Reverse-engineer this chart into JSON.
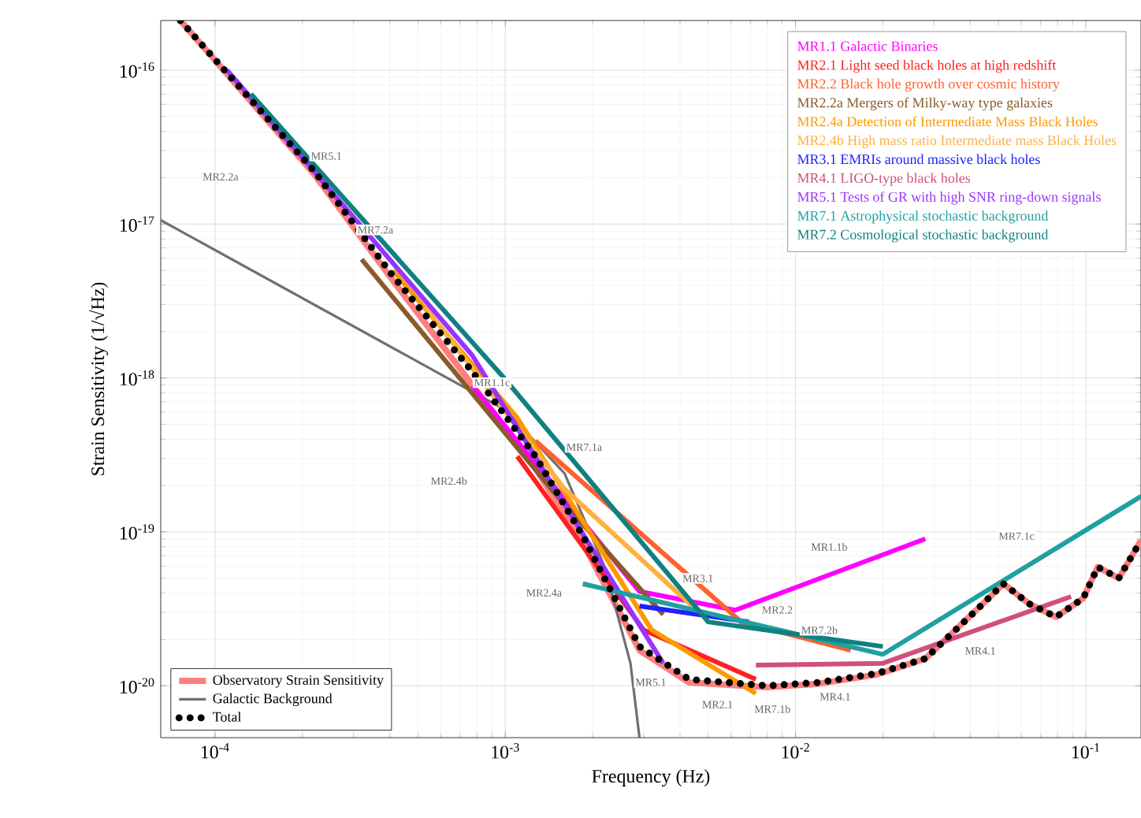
{
  "chart_data": {
    "type": "line",
    "xlabel": "Frequency (Hz)",
    "ylabel": "Strain Sensitivity (1/√Hz)",
    "log": "xy",
    "grid": true,
    "legend": "bottom left",
    "line_style": "solid",
    "xlim": [
      6.5e-05,
      0.155
    ],
    "ylim": [
      4.6e-21,
      2.1e-16
    ],
    "xticks": [
      {
        "value": 0.0001,
        "label": "10$^{-4}$"
      },
      {
        "value": 0.001,
        "label": "10$^{-3}$"
      },
      {
        "value": 0.01,
        "label": "10$^{-2}$"
      },
      {
        "value": 0.1,
        "label": "10$^{-1}$"
      }
    ],
    "yticks": [
      {
        "value": 1e-20,
        "label": "10$^{-20}$"
      },
      {
        "value": 1e-19,
        "label": "10$^{-19}$"
      },
      {
        "value": 1e-18,
        "label": "10$^{-18}$"
      },
      {
        "value": 1e-17,
        "label": "10$^{-17}$"
      },
      {
        "value": 1e-16,
        "label": "10$^{-16}$"
      }
    ],
    "series": [
      {
        "name": "Observatory Strain Sensitivity",
        "color": "#ff7f7f",
        "x": [
          7.6e-05,
          0.00022,
          0.00041,
          0.00077,
          0.00127,
          0.00185,
          0.0029,
          0.0043,
          0.008,
          0.012,
          0.019,
          0.028,
          0.042,
          0.052,
          0.064,
          0.079,
          0.098,
          0.11,
          0.13,
          0.155
        ],
        "values": [
          2.1e-16,
          2.1e-17,
          4.3e-18,
          9e-19,
          2.6e-19,
          8.5e-20,
          1.7e-20,
          1.05e-20,
          9.8e-21,
          1.03e-20,
          1.18e-20,
          1.5e-20,
          3.1e-20,
          4.6e-20,
          3.4e-20,
          2.8e-20,
          3.7e-20,
          5.9e-20,
          5e-20,
          8.8e-20
        ]
      },
      {
        "name": "Galactic Background",
        "color": "#707070",
        "x": [
          6.5e-05,
          0.001,
          0.0016,
          0.0022,
          0.0027,
          0.0029
        ],
        "values": [
          1.06e-17,
          6.2e-19,
          2.4e-19,
          5.9e-20,
          1.4e-20,
          4.6e-21
        ]
      },
      {
        "name": "Total",
        "color": "#000000",
        "line_style": "dotted",
        "x": [
          7.6e-05,
          0.00022,
          0.00041,
          0.00077,
          0.00127,
          0.00185,
          0.0029,
          0.0043,
          0.008,
          0.012,
          0.019,
          0.028,
          0.042,
          0.052,
          0.064,
          0.079,
          0.098,
          0.11,
          0.13,
          0.155
        ],
        "values": [
          2.1e-16,
          2.2e-17,
          4.6e-18,
          1.1e-18,
          3.1e-19,
          9.4e-20,
          1.8e-20,
          1.1e-20,
          1e-20,
          1.05e-20,
          1.2e-20,
          1.5e-20,
          3.1e-20,
          4.6e-20,
          3.4e-20,
          2.8e-20,
          3.7e-20,
          5.9e-20,
          5e-20,
          8.8e-20
        ]
      },
      {
        "name": "MR1.1 Galactic Binaries",
        "color": "#ff00ff",
        "x": [
          0.00077,
          0.0029,
          0.0062,
          0.028
        ],
        "values": [
          8.9e-19,
          4.1e-20,
          3.1e-20,
          9e-20
        ]
      },
      {
        "name": "MR2.1 Light seed black holes at high redshift",
        "color": "#ff2020",
        "x": [
          0.0011,
          0.003,
          0.0073
        ],
        "values": [
          3.1e-19,
          2.3e-20,
          1.1e-20
        ]
      },
      {
        "name": "MR2.2 Black hole growth over cosmic history",
        "color": "#ff6030",
        "x": [
          0.00127,
          0.0065,
          0.0155
        ],
        "values": [
          3.9e-19,
          2.6e-20,
          1.7e-20
        ]
      },
      {
        "name": "MR2.2a Mergers of Milky-way type galaxies",
        "color": "#8b5a2b",
        "x": [
          0.00032,
          0.00144,
          0.0035
        ],
        "values": [
          5.9e-18,
          1.9e-19,
          2.9e-20
        ]
      },
      {
        "name": "MR2.4a Detection of Intermediate Mass Black Holes",
        "color": "#ff9900",
        "x": [
          0.00041,
          0.0011,
          0.0032,
          0.0073
        ],
        "values": [
          5e-18,
          5.5e-19,
          2.3e-20,
          8.9e-21
        ]
      },
      {
        "name": "MR2.4b High mass ratio Intermediate mass Black Holes",
        "color": "#ffb040",
        "x": [
          0.00053,
          0.0016,
          0.0044
        ],
        "values": [
          2.9e-18,
          1.9e-19,
          3.3e-20
        ]
      },
      {
        "name": "MR3.1 EMRIs around massive black holes",
        "color": "#2020ff",
        "x": [
          0.0029,
          0.0069
        ],
        "values": [
          3.3e-20,
          2.6e-20
        ]
      },
      {
        "name": "MR4.1 LIGO-type black holes",
        "color": "#d0507a",
        "x": [
          0.0073,
          0.02,
          0.089
        ],
        "values": [
          1.36e-20,
          1.4e-20,
          3.8e-20
        ]
      },
      {
        "name": "MR5.1 Tests of GR with high SNR ring-down signals",
        "color": "#9933ff",
        "x": [
          0.00011,
          0.00077,
          0.0035
        ],
        "values": [
          1e-16,
          1.4e-18,
          1.4e-20
        ]
      },
      {
        "name": "MR7.1 Astrophysical stochastic background",
        "color": "#20a0a0",
        "x": [
          0.00185,
          0.02,
          0.155
        ],
        "values": [
          4.6e-20,
          1.6e-20,
          1.7e-19
        ]
      },
      {
        "name": "MR7.2 Cosmological stochastic background",
        "color": "#108080",
        "x": [
          0.000133,
          0.00099,
          0.005,
          0.02
        ],
        "values": [
          7e-17,
          1e-18,
          2.6e-20,
          1.8e-20
        ]
      }
    ],
    "annotations": [
      "MR5.1",
      "MR2.2a",
      "MR7.2a",
      "MR1.1c",
      "MR7.1a",
      "MR2.4b",
      "MR2.4a",
      "MR3.1",
      "MR1.1b",
      "MR2.2",
      "MR7.2b",
      "MR7.1c",
      "MR4.1",
      "MR5.1",
      "MR2.1",
      "MR7.1b",
      "MR4.1"
    ]
  }
}
